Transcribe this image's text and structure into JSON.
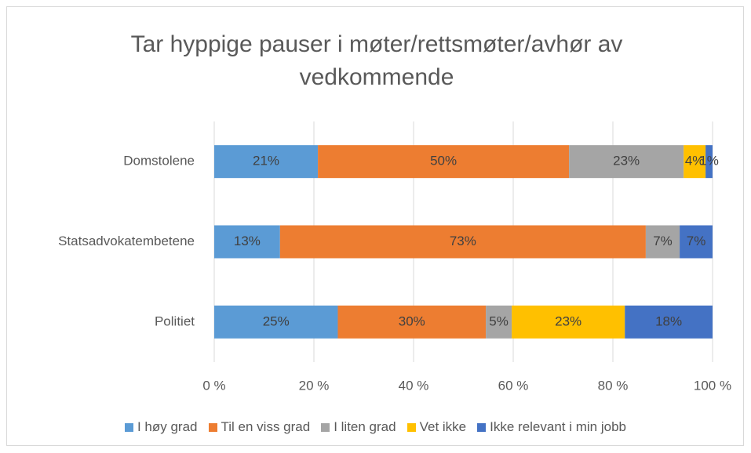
{
  "chart_data": {
    "type": "stacked-bar-horizontal",
    "title": "Tar hyppige pauser i møter/rettsmøter/avhør av vedkommende",
    "categories": [
      "Domstolene",
      "Statsadvokatembetene",
      "Politiet"
    ],
    "series": [
      {
        "name": "I høy grad",
        "color": "#5b9bd5",
        "values": [
          20.8,
          13.2,
          24.8
        ],
        "value_labels": [
          "21%",
          "13%",
          "25%"
        ]
      },
      {
        "name": "Til en viss grad",
        "color": "#ed7d31",
        "values": [
          50.4,
          73.4,
          29.7
        ],
        "value_labels": [
          "50%",
          "73%",
          "30%"
        ]
      },
      {
        "name": "I liten grad",
        "color": "#a5a5a5",
        "values": [
          23.0,
          6.8,
          5.2
        ],
        "value_labels": [
          "23%",
          "7%",
          "5%"
        ]
      },
      {
        "name": "Vet ikke",
        "color": "#ffc000",
        "values": [
          4.4,
          0,
          22.7
        ],
        "value_labels": [
          "4%",
          null,
          "23%"
        ]
      },
      {
        "name": "Ikke relevant i min jobb",
        "color": "#4472c4",
        "values": [
          1.4,
          6.6,
          17.6
        ],
        "value_labels": [
          "1%",
          "7%",
          "18%"
        ]
      }
    ],
    "xlim": [
      0,
      100
    ],
    "xticks": [
      {
        "value": 0,
        "label": "0 %"
      },
      {
        "value": 20,
        "label": "20 %"
      },
      {
        "value": 40,
        "label": "40 %"
      },
      {
        "value": 60,
        "label": "60 %"
      },
      {
        "value": 80,
        "label": "80 %"
      },
      {
        "value": 100,
        "label": "100 %"
      }
    ],
    "grid": true,
    "legend": "bottom"
  }
}
